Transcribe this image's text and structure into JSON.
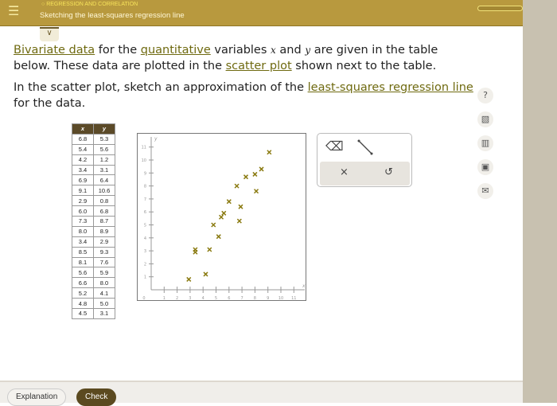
{
  "header": {
    "topic": "REGRESSION AND CORRELATION",
    "title": "Sketching the least-squares regression line",
    "menu_icon": "hamburger-icon"
  },
  "question": {
    "p1": {
      "t1": "Bivariate data",
      "t2": " for the ",
      "t3": "quantitative",
      "t4": " variables ",
      "x": "x",
      "t5": " and ",
      "y": "y",
      "t6": " are given in the table below. These data are plotted in the ",
      "t7": "scatter plot",
      "t8": " shown next to the table."
    },
    "p2": {
      "t1": "In the scatter plot, sketch an approximation of the ",
      "t2": "least-squares regression line",
      "t3": " for the data."
    }
  },
  "table": {
    "headers": [
      "x",
      "y"
    ],
    "rows": [
      [
        "6.8",
        "5.3"
      ],
      [
        "5.4",
        "5.6"
      ],
      [
        "4.2",
        "1.2"
      ],
      [
        "3.4",
        "3.1"
      ],
      [
        "6.9",
        "6.4"
      ],
      [
        "9.1",
        "10.6"
      ],
      [
        "2.9",
        "0.8"
      ],
      [
        "6.0",
        "6.8"
      ],
      [
        "7.3",
        "8.7"
      ],
      [
        "8.0",
        "8.9"
      ],
      [
        "3.4",
        "2.9"
      ],
      [
        "8.5",
        "9.3"
      ],
      [
        "8.1",
        "7.6"
      ],
      [
        "5.6",
        "5.9"
      ],
      [
        "6.6",
        "8.0"
      ],
      [
        "5.2",
        "4.1"
      ],
      [
        "4.8",
        "5.0"
      ],
      [
        "4.5",
        "3.1"
      ]
    ]
  },
  "chart_data": {
    "type": "scatter",
    "xlabel": "x",
    "ylabel": "y",
    "xlim": [
      0,
      11
    ],
    "ylim": [
      0,
      11
    ],
    "xticks": [
      "0",
      "1",
      "2",
      "3",
      "4",
      "5",
      "6",
      "7",
      "8",
      "9",
      "10",
      "11"
    ],
    "yticks": [
      "1",
      "2",
      "3",
      "4",
      "5",
      "6",
      "7",
      "8",
      "9",
      "10",
      "11"
    ],
    "marker": "x",
    "color": "#8a7a10",
    "points": [
      [
        6.8,
        5.3
      ],
      [
        5.4,
        5.6
      ],
      [
        4.2,
        1.2
      ],
      [
        3.4,
        3.1
      ],
      [
        6.9,
        6.4
      ],
      [
        9.1,
        10.6
      ],
      [
        2.9,
        0.8
      ],
      [
        6.0,
        6.8
      ],
      [
        7.3,
        8.7
      ],
      [
        8.0,
        8.9
      ],
      [
        3.4,
        2.9
      ],
      [
        8.5,
        9.3
      ],
      [
        8.1,
        7.6
      ],
      [
        5.6,
        5.9
      ],
      [
        6.6,
        8.0
      ],
      [
        5.2,
        4.1
      ],
      [
        4.8,
        5.0
      ],
      [
        4.5,
        3.1
      ]
    ]
  },
  "tools": {
    "eraser": "eraser-icon",
    "line": "line-tool-icon",
    "clear": "×",
    "undo": "↺"
  },
  "side_icons": {
    "help": "?"
  },
  "footer": {
    "explanation": "Explanation",
    "check": "Check"
  }
}
